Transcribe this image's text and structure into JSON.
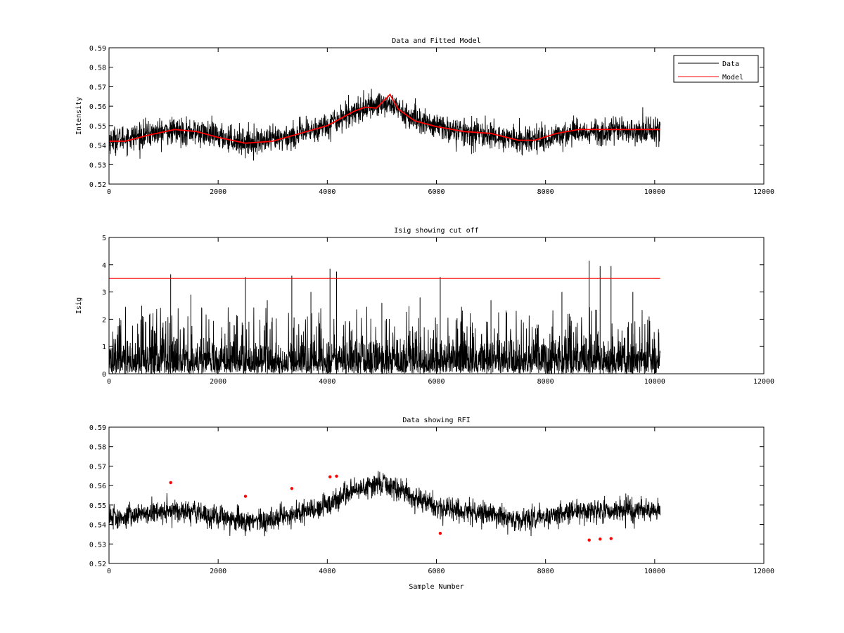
{
  "chart_data": [
    {
      "type": "line",
      "title": "Data and Fitted Model",
      "xlabel": "",
      "ylabel": "Intensity",
      "xlim": [
        0,
        12000
      ],
      "ylim": [
        0.52,
        0.59
      ],
      "xticks": [
        0,
        2000,
        4000,
        6000,
        8000,
        10000,
        12000
      ],
      "yticks": [
        0.52,
        0.53,
        0.54,
        0.55,
        0.56,
        0.57,
        0.58,
        0.59
      ],
      "xtick_labels": [
        "0",
        "2000",
        "4000",
        "6000",
        "8000",
        "10000",
        "12000"
      ],
      "ytick_labels": [
        "0.52",
        "0.53",
        "0.54",
        "0.55",
        "0.56",
        "0.57",
        "0.58",
        "0.59"
      ],
      "grid": false,
      "legend": {
        "placement": "top-right",
        "entries": [
          "Data",
          "Model"
        ]
      },
      "series": [
        {
          "name": "Data",
          "color": "#000000",
          "style": "noisy-band",
          "x": [
            0,
            500,
            1000,
            1500,
            2000,
            2500,
            3000,
            3500,
            4000,
            4500,
            5000,
            5200,
            5500,
            6000,
            6500,
            7000,
            7500,
            8000,
            8500,
            9000,
            9500,
            10100
          ],
          "center": [
            0.5425,
            0.5445,
            0.547,
            0.547,
            0.5445,
            0.5415,
            0.5425,
            0.5455,
            0.5505,
            0.5575,
            0.5615,
            0.5605,
            0.5545,
            0.5495,
            0.5465,
            0.545,
            0.5425,
            0.5435,
            0.547,
            0.547,
            0.5475,
            0.5475
          ],
          "spread": 0.0075
        },
        {
          "name": "Model",
          "color": "#ff0000",
          "x": [
            0,
            300,
            700,
            1200,
            1600,
            2000,
            2500,
            3000,
            3500,
            4000,
            4500,
            4700,
            4900,
            5100,
            5150,
            5300,
            5600,
            6000,
            6500,
            7000,
            7500,
            7800,
            8200,
            8600,
            9000,
            10100
          ],
          "values": [
            0.542,
            0.542,
            0.545,
            0.548,
            0.547,
            0.544,
            0.541,
            0.542,
            0.546,
            0.55,
            0.5575,
            0.5595,
            0.559,
            0.5645,
            0.566,
            0.5585,
            0.5525,
            0.5495,
            0.547,
            0.546,
            0.5425,
            0.5425,
            0.546,
            0.548,
            0.548,
            0.548
          ]
        }
      ]
    },
    {
      "type": "line",
      "title": "Isig showing cut off",
      "xlabel": "",
      "ylabel": "Isig",
      "xlim": [
        0,
        12000
      ],
      "ylim": [
        0,
        5
      ],
      "xticks": [
        0,
        2000,
        4000,
        6000,
        8000,
        10000,
        12000
      ],
      "yticks": [
        0,
        1,
        2,
        3,
        4,
        5
      ],
      "xtick_labels": [
        "0",
        "2000",
        "4000",
        "6000",
        "8000",
        "10000",
        "12000"
      ],
      "ytick_labels": [
        "0",
        "1",
        "2",
        "3",
        "4",
        "5"
      ],
      "grid": false,
      "series": [
        {
          "color": "#000000",
          "style": "noise",
          "x_range": [
            0,
            10100
          ],
          "typical_max": 1.6,
          "peaks": [
            [
              1130,
              3.65
            ],
            [
              2500,
              3.55
            ],
            [
              3350,
              3.6
            ],
            [
              4050,
              3.85
            ],
            [
              4170,
              3.75
            ],
            [
              6070,
              3.55
            ],
            [
              8800,
              4.15
            ],
            [
              9000,
              3.95
            ],
            [
              9200,
              3.95
            ],
            [
              600,
              2.5
            ],
            [
              1500,
              2.9
            ],
            [
              2900,
              2.7
            ],
            [
              3700,
              3.0
            ],
            [
              5700,
              2.8
            ],
            [
              7000,
              2.7
            ],
            [
              8300,
              3.0
            ],
            [
              9600,
              3.0
            ],
            [
              1700,
              2.4
            ],
            [
              5000,
              2.6
            ]
          ]
        },
        {
          "name": "cut off",
          "color": "#ff0000",
          "x": [
            0,
            10100
          ],
          "values": [
            3.5,
            3.5
          ]
        }
      ]
    },
    {
      "type": "scatter",
      "title": "Data showing RFI",
      "xlabel": "Sample Number",
      "ylabel": "",
      "xlim": [
        0,
        12000
      ],
      "ylim": [
        0.52,
        0.59
      ],
      "xticks": [
        0,
        2000,
        4000,
        6000,
        8000,
        10000,
        12000
      ],
      "yticks": [
        0.52,
        0.53,
        0.54,
        0.55,
        0.56,
        0.57,
        0.58,
        0.59
      ],
      "xtick_labels": [
        "0",
        "2000",
        "4000",
        "6000",
        "8000",
        "10000",
        "12000"
      ],
      "ytick_labels": [
        "0.52",
        "0.53",
        "0.54",
        "0.55",
        "0.56",
        "0.57",
        "0.58",
        "0.59"
      ],
      "grid": false,
      "series": [
        {
          "color": "#000000",
          "style": "noisy-band",
          "x": [
            0,
            500,
            1000,
            1500,
            2000,
            2500,
            3000,
            3500,
            4000,
            4500,
            5000,
            5200,
            5500,
            6000,
            6500,
            7000,
            7500,
            8000,
            8500,
            9000,
            9500,
            10100
          ],
          "center": [
            0.5425,
            0.5445,
            0.547,
            0.547,
            0.5445,
            0.5415,
            0.5425,
            0.5455,
            0.5505,
            0.5575,
            0.5615,
            0.5605,
            0.5545,
            0.5495,
            0.5465,
            0.545,
            0.5425,
            0.5435,
            0.547,
            0.547,
            0.5475,
            0.5475
          ],
          "spread": 0.0065
        },
        {
          "color": "#ff0000",
          "x": [
            1130,
            2500,
            3350,
            4050,
            4170,
            6070,
            8800,
            9000,
            9200
          ],
          "values": [
            0.5615,
            0.5545,
            0.5585,
            0.5645,
            0.5648,
            0.5355,
            0.532,
            0.5325,
            0.5328
          ]
        }
      ]
    }
  ]
}
